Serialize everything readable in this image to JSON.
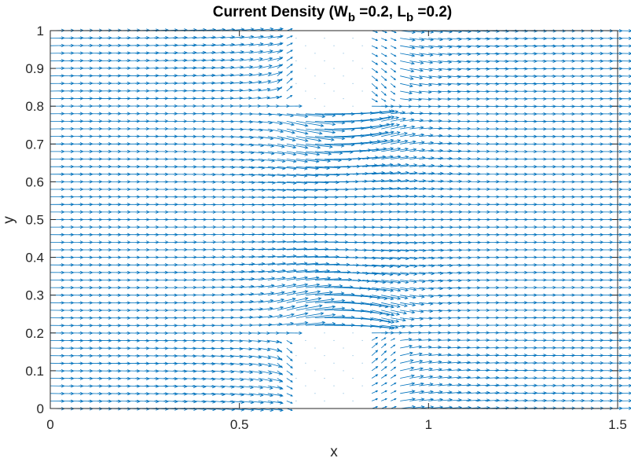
{
  "chart_data": {
    "type": "quiver",
    "title": {
      "prefix": "Current Density (W",
      "sub_w": "b",
      "middle": " =0.2, L",
      "sub_l": "b",
      "suffix": " =0.2)"
    },
    "xlabel": "x",
    "ylabel": "y",
    "xlim": [
      0,
      1.5
    ],
    "ylim": [
      0,
      1
    ],
    "x_ticks": [
      0,
      0.5,
      1,
      1.5
    ],
    "x_tick_labels": [
      "0",
      "0.5",
      "1",
      "1.5"
    ],
    "y_ticks": [
      0,
      0.1,
      0.2,
      0.3,
      0.4,
      0.5,
      0.6,
      0.7,
      0.8,
      0.9,
      1
    ],
    "y_tick_labels": [
      "0",
      "0.1",
      "0.2",
      "0.3",
      "0.4",
      "0.5",
      "0.6",
      "0.7",
      "0.8",
      "0.9",
      "1"
    ],
    "grid": false,
    "box": true,
    "series": [
      {
        "color": "#0072BD",
        "field": "uniform current flowing in +x, deflected around two rectangular barriers",
        "barriers": [
          {
            "x": [
              0.64,
              0.84
            ],
            "y": [
              0,
              0.2
            ]
          },
          {
            "x": [
              0.64,
              0.84
            ],
            "y": [
              0.8,
              1.0
            ]
          }
        ]
      }
    ]
  }
}
